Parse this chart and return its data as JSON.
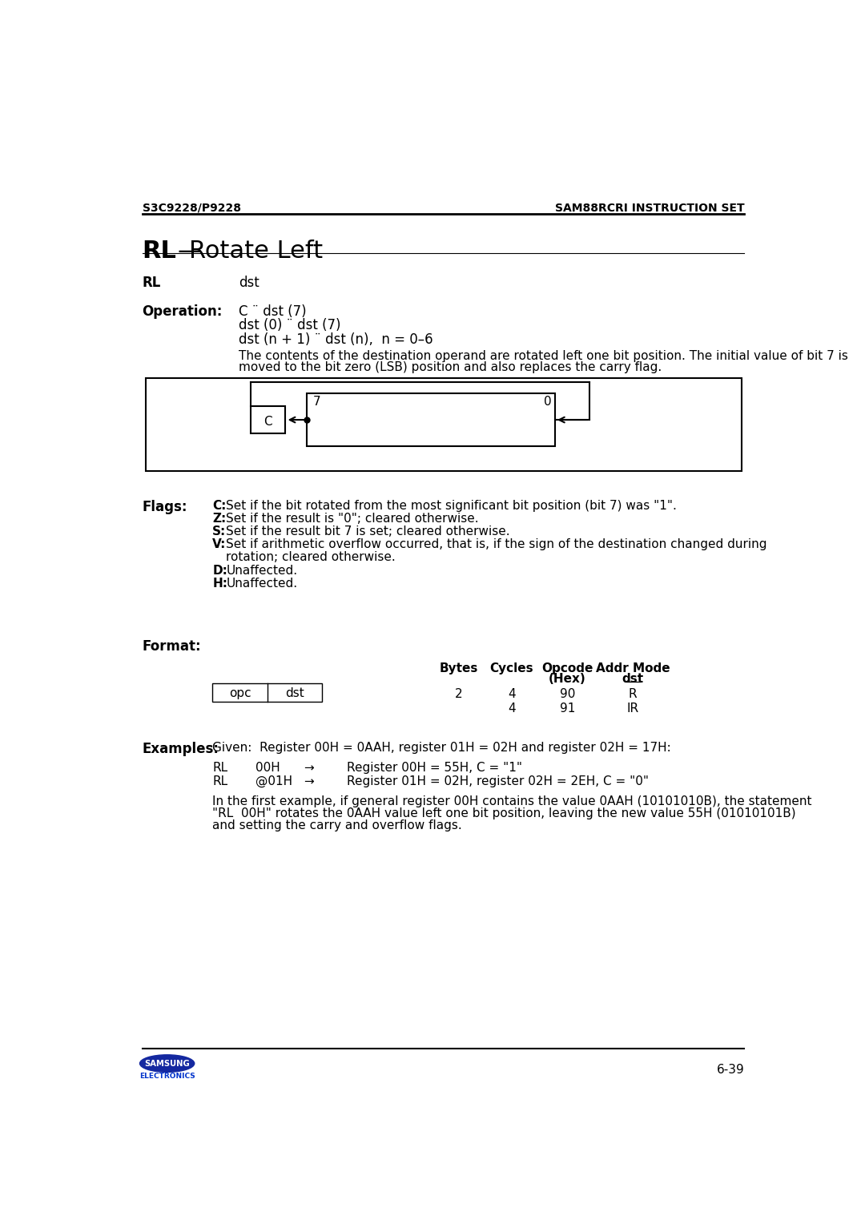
{
  "page_header_left": "S3C9228/P9228",
  "page_header_right": "SAM88RCRI INSTRUCTION SET",
  "title": "RL",
  "title_dash": "—",
  "title_rest": "Rotate Left",
  "rl_label": "RL",
  "rl_operand": "dst",
  "op_label": "Operation:",
  "op_line1": "C ¨ dst (7)",
  "op_line2": "dst (0) ¨ dst (7)",
  "op_line3": "dst (n + 1) ¨ dst (n),  n = 0–6",
  "op_desc1": "The contents of the destination operand are rotated left one bit position. The initial value of bit 7 is",
  "op_desc2": "moved to the bit zero (LSB) position and also replaces the carry flag.",
  "flags_label": "Flags:",
  "flag_lines": [
    [
      "C:",
      "Set if the bit rotated from the most significant bit position (bit 7) was \"1\"."
    ],
    [
      "Z:",
      "Set if the result is \"0\"; cleared otherwise."
    ],
    [
      "S:",
      "Set if the result bit 7 is set; cleared otherwise."
    ],
    [
      "V:",
      "Set if arithmetic overflow occurred, that is, if the sign of the destination changed during"
    ],
    [
      "",
      "rotation; cleared otherwise."
    ],
    [
      "D:",
      "Unaffected."
    ],
    [
      "H:",
      "Unaffected."
    ]
  ],
  "format_label": "Format:",
  "col_bytes": "Bytes",
  "col_cycles": "Cycles",
  "col_opcode": "Opcode",
  "col_opcode2": "(Hex)",
  "col_addrmode": "Addr Mode",
  "col_addrmode2": "dst",
  "row1": [
    2,
    4,
    "90",
    "R"
  ],
  "row2": [
    "",
    4,
    "91",
    "IR"
  ],
  "opc_label": "opc",
  "dst_label": "dst",
  "examples_label": "Examples:",
  "examples_given": "Given:  Register 00H = 0AAH, register 01H = 02H and register 02H = 17H:",
  "ex_line1_col1": "RL",
  "ex_line1_col2": "00H",
  "ex_line1_arrow": "→",
  "ex_line1_result": "Register 00H = 55H, C = \"1\"",
  "ex_line2_col1": "RL",
  "ex_line2_col2": "@01H",
  "ex_line2_arrow": "→",
  "ex_line2_result": "Register 01H = 02H, register 02H = 2EH, C = \"0\"",
  "ex_para": [
    "In the first example, if general register 00H contains the value 0AAH (10101010B), the statement",
    "\"RL  00H\" rotates the 0AAH value left one bit position, leaving the new value 55H (01010101B)",
    "and setting the carry and overflow flags."
  ],
  "page_num": "6-39",
  "bg_color": "#ffffff",
  "text_color": "#000000"
}
